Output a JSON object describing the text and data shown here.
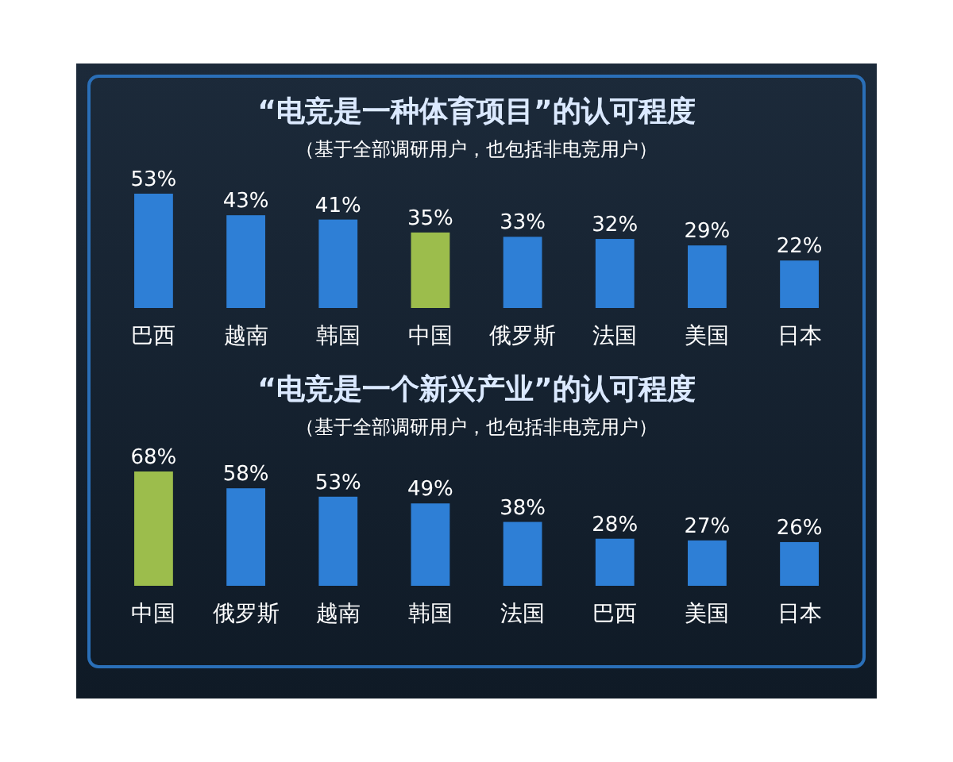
{
  "chart_data": [
    {
      "type": "bar",
      "title": "“电竞是一种体育项目”的认可程度",
      "subtitle": "（基于全部调研用户，也包括非电竞用户）",
      "categories": [
        "巴西",
        "越南",
        "韩国",
        "中国",
        "俄罗斯",
        "法国",
        "美国",
        "日本"
      ],
      "values": [
        53,
        43,
        41,
        35,
        33,
        32,
        29,
        22
      ],
      "value_labels": [
        "53%",
        "43%",
        "41%",
        "35%",
        "33%",
        "32%",
        "29%",
        "22%"
      ],
      "colors": [
        "#2e7fd6",
        "#2e7fd6",
        "#2e7fd6",
        "#9cbd4c",
        "#2e7fd6",
        "#2e7fd6",
        "#2e7fd6",
        "#2e7fd6"
      ]
    },
    {
      "type": "bar",
      "title": "“电竞是一个新兴产业”的认可程度",
      "subtitle": "（基于全部调研用户，也包括非电竞用户）",
      "categories": [
        "中国",
        "俄罗斯",
        "越南",
        "韩国",
        "法国",
        "巴西",
        "美国",
        "日本"
      ],
      "values": [
        68,
        58,
        53,
        49,
        38,
        28,
        27,
        26
      ],
      "value_labels": [
        "68%",
        "58%",
        "53%",
        "49%",
        "38%",
        "28%",
        "27%",
        "26%"
      ],
      "colors": [
        "#9cbd4c",
        "#2e7fd6",
        "#2e7fd6",
        "#2e7fd6",
        "#2e7fd6",
        "#2e7fd6",
        "#2e7fd6",
        "#2e7fd6"
      ]
    }
  ]
}
